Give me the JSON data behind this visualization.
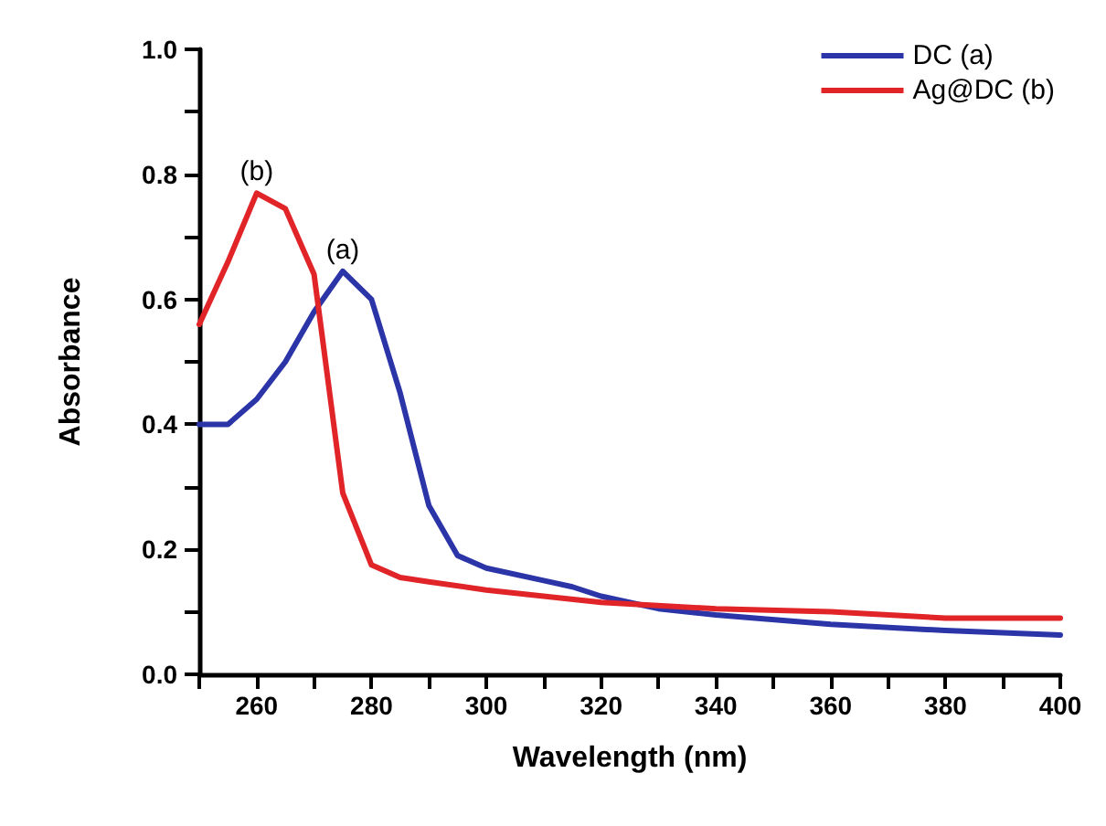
{
  "chart_data": {
    "type": "line",
    "xlabel": "Wavelength (nm)",
    "ylabel": "Absorbance",
    "xlim": [
      250,
      400
    ],
    "xticks": [
      {
        "value": 250,
        "label": null
      },
      260,
      {
        "value": 270,
        "label": null
      },
      280,
      {
        "value": 290,
        "label": null
      },
      300,
      {
        "value": 310,
        "label": null
      },
      320,
      {
        "value": 330,
        "label": null
      },
      340,
      {
        "value": 350,
        "label": null
      },
      360,
      {
        "value": 370,
        "label": null
      },
      380,
      {
        "value": 390,
        "label": null
      },
      400
    ],
    "ylim": [
      0,
      1
    ],
    "yticks": [
      "0.0",
      {
        "value": 0.1,
        "label": null
      },
      0.2,
      {
        "value": 0.3,
        "label": null
      },
      0.4,
      {
        "value": 0.5,
        "label": null
      },
      0.6,
      {
        "value": 0.7,
        "label": null
      },
      0.8,
      {
        "value": 0.9,
        "label": null
      },
      "1.0"
    ],
    "grid": false,
    "legend": "top right",
    "marker": "none",
    "line_style": "solid",
    "annotations": [
      {
        "text": "(a)",
        "x": 275,
        "y": 0.645
      },
      {
        "text": "(b)",
        "x": 260,
        "y": 0.77
      }
    ],
    "series": [
      {
        "name": "DC (a)",
        "color": "#2b35a8",
        "x": [
          250,
          255,
          260,
          265,
          270,
          275,
          280,
          285,
          290,
          295,
          300,
          310,
          315,
          320,
          330,
          340,
          360,
          380,
          400
        ],
        "values": [
          0.4,
          0.4,
          0.44,
          0.5,
          0.58,
          0.645,
          0.6,
          0.45,
          0.27,
          0.19,
          0.17,
          0.15,
          0.14,
          0.125,
          0.105,
          0.095,
          0.08,
          0.07,
          0.063
        ]
      },
      {
        "name": "Ag@DC (b)",
        "color": "#e02428",
        "x": [
          250,
          255,
          260,
          265,
          270,
          275,
          280,
          285,
          290,
          300,
          320,
          340,
          360,
          380,
          400
        ],
        "values": [
          0.56,
          0.66,
          0.77,
          0.745,
          0.64,
          0.29,
          0.175,
          0.155,
          0.148,
          0.135,
          0.115,
          0.105,
          0.1,
          0.09,
          0.09
        ]
      }
    ]
  }
}
